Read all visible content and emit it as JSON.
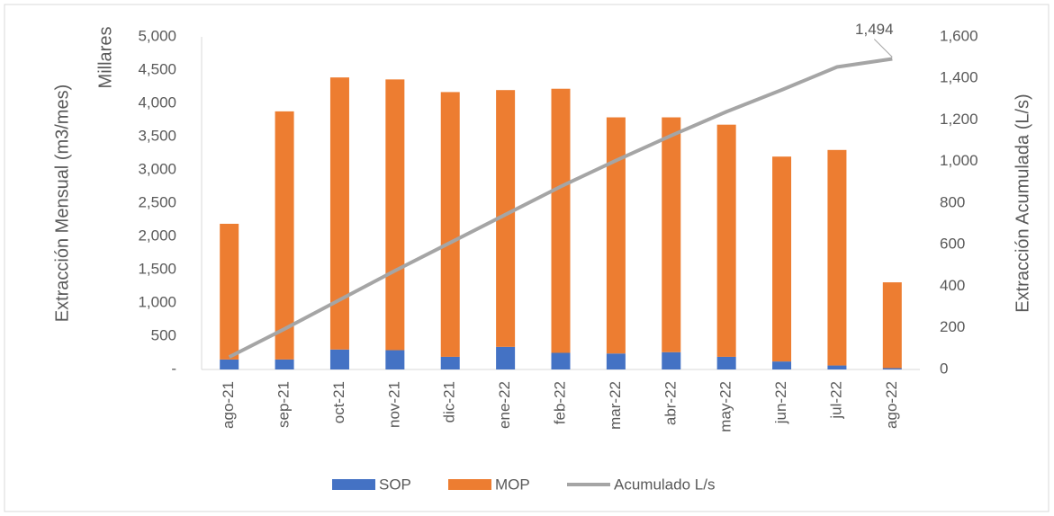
{
  "chart_data": {
    "type": "bar",
    "stacked": true,
    "y_label": "Extracción Mensual (m3/mes)",
    "y_unit_label": "Millares",
    "y2_label": "Extracción Acumulada (L/s)",
    "categories": [
      "ago-21",
      "sep-21",
      "oct-21",
      "nov-21",
      "dic-21",
      "ene-22",
      "feb-22",
      "mar-22",
      "abr-22",
      "may-22",
      "jun-22",
      "jul-22",
      "ago-22"
    ],
    "series": [
      {
        "name": "SOP",
        "type": "bar",
        "color": "#4472c4",
        "values": [
          150,
          150,
          300,
          290,
          190,
          340,
          250,
          240,
          260,
          190,
          120,
          60,
          20
        ]
      },
      {
        "name": "MOP",
        "type": "bar",
        "color": "#ed7d31",
        "values": [
          2040,
          3730,
          4090,
          4070,
          3980,
          3860,
          3970,
          3550,
          3530,
          3490,
          3080,
          3240,
          1290
        ]
      },
      {
        "name": "Acumulado L/s",
        "type": "line",
        "axis": "y2",
        "color": "#a5a5a5",
        "values": [
          60,
          195,
          335,
          475,
          610,
          745,
          880,
          1005,
          1125,
          1240,
          1345,
          1455,
          1494
        ],
        "value_labels": [
          null,
          null,
          null,
          null,
          null,
          null,
          null,
          null,
          null,
          null,
          null,
          null,
          "1,494"
        ]
      }
    ],
    "ylim": [
      0,
      5000
    ],
    "yticks": [
      {
        "value": 0,
        "label": "-"
      },
      500,
      {
        "value": 1000,
        "label": "1,000"
      },
      {
        "value": 1500,
        "label": "1,500"
      },
      {
        "value": 2000,
        "label": "2,000"
      },
      {
        "value": 2500,
        "label": "2,500"
      },
      {
        "value": 3000,
        "label": "3,000"
      },
      {
        "value": 3500,
        "label": "3,500"
      },
      {
        "value": 4000,
        "label": "4,000"
      },
      {
        "value": 4500,
        "label": "4,500"
      },
      {
        "value": 5000,
        "label": "5,000"
      }
    ],
    "y2lim": [
      0,
      1600
    ],
    "y2ticks": [
      0,
      200,
      400,
      600,
      800,
      {
        "value": 1000,
        "label": "1,000"
      },
      {
        "value": 1200,
        "label": "1,200"
      },
      {
        "value": 1400,
        "label": "1,400"
      },
      {
        "value": 1600,
        "label": "1,600"
      }
    ],
    "grid": false,
    "legend": "bottom"
  }
}
